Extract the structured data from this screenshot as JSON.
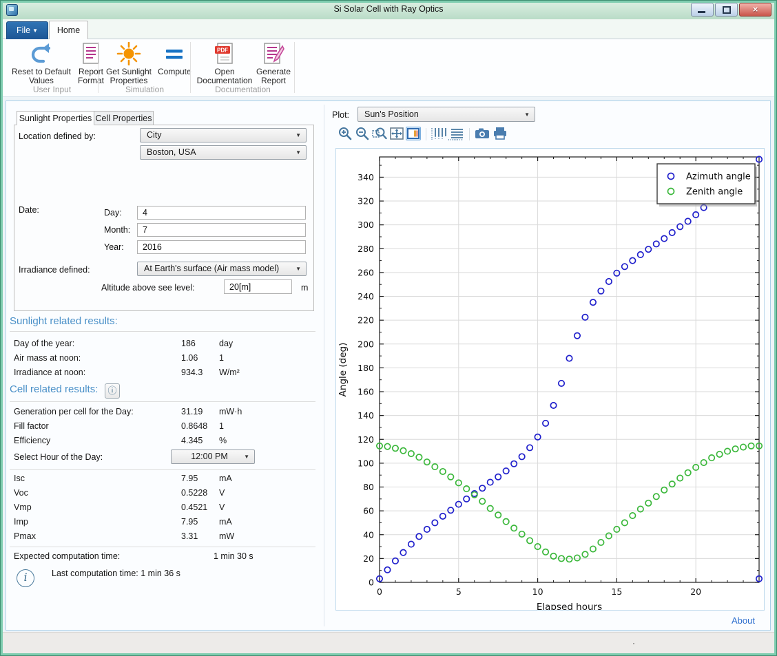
{
  "titlebar": {
    "title": "Si Solar Cell with Ray Optics"
  },
  "tabs": {
    "file": "File",
    "home": "Home"
  },
  "icons": {
    "dropdown": "▼",
    "combo_arrow": "▼",
    "info_circled": "ⓘ",
    "info_char": "i"
  },
  "ribbon": {
    "user_input": {
      "label": "User Input",
      "reset": "Reset to Default Values",
      "report_format": "Report Format"
    },
    "simulation": {
      "label": "Simulation",
      "get_sunlight": "Get Sunlight Properties",
      "compute": "Compute"
    },
    "documentation": {
      "label": "Documentation",
      "open_doc": "Open Documentation",
      "generate_report": "Generate Report",
      "pdf_badge": "PDF"
    }
  },
  "left": {
    "tab_sunlight": "Sunlight Properties",
    "tab_cell": "Cell Properties",
    "form": {
      "location_label": "Location defined by:",
      "location_type": "City",
      "location_city": "Boston, USA",
      "date_label": "Date:",
      "day_label": "Day:",
      "day_value": "4",
      "month_label": "Month:",
      "month_value": "7",
      "year_label": "Year:",
      "year_value": "2016",
      "irradiance_label": "Irradiance defined:",
      "irradiance_value": "At Earth's surface (Air mass model)",
      "altitude_label": "Altitude above see level:",
      "altitude_value": "20[m]",
      "altitude_unit": "m"
    },
    "sun_results": {
      "heading": "Sunlight related results:",
      "rows": [
        {
          "label": "Day of the year:",
          "value": "186",
          "unit": "day"
        },
        {
          "label": "Air mass at noon:",
          "value": "1.06",
          "unit": "1"
        },
        {
          "label": "Irradiance at noon:",
          "value": "934.3",
          "unit": "W/m²"
        }
      ]
    },
    "cell_results": {
      "heading": "Cell related results:",
      "rows": [
        {
          "label": "Generation per cell for the Day:",
          "value": "31.19",
          "unit": "mW·h"
        },
        {
          "label": "Fill factor",
          "value": "0.8648",
          "unit": "1"
        },
        {
          "label": "Efficiency",
          "value": "4.345",
          "unit": "%"
        }
      ],
      "hour_label": "Select Hour of the Day:",
      "hour_value": "12:00 PM",
      "iv_rows": [
        {
          "label": "Isc",
          "value": "7.95",
          "unit": "mA"
        },
        {
          "label": "Voc",
          "value": "0.5228",
          "unit": "V"
        },
        {
          "label": "Vmp",
          "value": "0.4521",
          "unit": "V"
        },
        {
          "label": "Imp",
          "value": "7.95",
          "unit": "mA"
        },
        {
          "label": "Pmax",
          "value": "3.31",
          "unit": "mW"
        }
      ],
      "expected_label": "Expected computation time:",
      "expected_value": "1 min 30 s",
      "last_info": "Last computation time: 1 min 36 s"
    }
  },
  "right": {
    "plot_label": "Plot:",
    "plot_value": "Sun's Position",
    "about": "About"
  },
  "chart_data": {
    "type": "scatter",
    "title": "",
    "xlabel": "Elapsed hours",
    "ylabel": "Angle (deg)",
    "xlim": [
      0,
      24
    ],
    "ylim": [
      0,
      357
    ],
    "x_ticks": [
      0,
      5,
      10,
      15,
      20
    ],
    "y_ticks": [
      0,
      20,
      40,
      60,
      80,
      100,
      120,
      140,
      160,
      180,
      200,
      220,
      240,
      260,
      280,
      300,
      320,
      340
    ],
    "grid": true,
    "legend_position": "top-right",
    "marker_color_azimuth": "#2121cc",
    "marker_color_zenith": "#3cb83c",
    "series": [
      {
        "name": "Azimuth angle",
        "color": "#2121cc",
        "marker": "circle",
        "x": [
          0,
          0.5,
          1,
          1.5,
          2,
          2.5,
          3,
          3.5,
          4,
          4.5,
          5,
          5.5,
          6,
          6.5,
          7,
          7.5,
          8,
          8.5,
          9,
          9.5,
          10,
          10.5,
          11,
          11.5,
          12,
          12.5,
          13,
          13.5,
          14,
          14.5,
          15,
          15.5,
          16,
          16.5,
          17,
          17.5,
          18,
          18.5,
          19,
          19.5,
          20,
          20.5,
          21,
          21.5,
          22,
          22.5,
          23,
          23.5,
          24,
          24
        ],
        "y": [
          3,
          10.5,
          18,
          25,
          32,
          38.5,
          44.5,
          50,
          55.5,
          60.5,
          65.5,
          70,
          74.5,
          79,
          84,
          88.5,
          93.5,
          99.5,
          105.5,
          113,
          122,
          133.5,
          148.5,
          167,
          188,
          207,
          222.5,
          235,
          244.5,
          252.5,
          259.5,
          265,
          270,
          275,
          279.5,
          284,
          288.5,
          293.5,
          298.5,
          303,
          308.5,
          314.5,
          320.5,
          326,
          331.5,
          337,
          342.5,
          348,
          355,
          3
        ]
      },
      {
        "name": "Zenith angle",
        "color": "#3cb83c",
        "marker": "circle",
        "x": [
          0,
          0.5,
          1,
          1.5,
          2,
          2.5,
          3,
          3.5,
          4,
          4.5,
          5,
          5.5,
          6,
          6.5,
          7,
          7.5,
          8,
          8.5,
          9,
          9.5,
          10,
          10.5,
          11,
          11.5,
          12,
          12.5,
          13,
          13.5,
          14,
          14.5,
          15,
          15.5,
          16,
          16.5,
          17,
          17.5,
          18,
          18.5,
          19,
          19.5,
          20,
          20.5,
          21,
          21.5,
          22,
          22.5,
          23,
          23.5,
          24
        ],
        "y": [
          114.5,
          114,
          112.5,
          110.5,
          108,
          105,
          101,
          97,
          93,
          88.5,
          83.5,
          78.5,
          73.5,
          68,
          62,
          56.5,
          51,
          45.5,
          40.5,
          35,
          30,
          25.5,
          22,
          20,
          19.5,
          20.5,
          23.5,
          28,
          33.5,
          39,
          44.5,
          50,
          56,
          61.5,
          66.5,
          72,
          77.5,
          82.5,
          87.5,
          92,
          96.5,
          100.5,
          104.5,
          107.5,
          110,
          112,
          113.5,
          114.5,
          114.5
        ]
      }
    ]
  }
}
